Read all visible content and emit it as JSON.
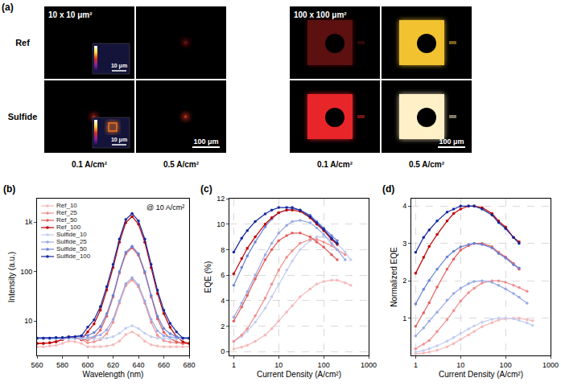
{
  "panel_a": {
    "label": "(a)",
    "rows": [
      "Ref",
      "Sulfide"
    ],
    "columns": [
      "0.1 A/cm²",
      "0.5 A/cm²"
    ],
    "groups": [
      {
        "title": "10 x 10 μm²",
        "type": "spot",
        "scale_bar": "100 μm",
        "inset_scale_bar": "10 μm",
        "cells": [
          [
            {
              "inset": true
            },
            {
              "color": "#7a1010"
            }
          ],
          [
            {
              "color": "#b02020",
              "inset": true,
              "inset_color": "#f07820"
            },
            {
              "color": "#d03020"
            }
          ]
        ]
      },
      {
        "title": "100 x 100 μm²",
        "type": "pad",
        "scale_bar": "100 μm",
        "cells": [
          [
            {
              "color": "#5c1010"
            },
            {
              "color": "#f2c230"
            }
          ],
          [
            {
              "color": "#e8262a"
            },
            {
              "color": "#fff0c8"
            }
          ]
        ]
      }
    ]
  },
  "chart_data": [
    {
      "label": "(b)",
      "type": "line",
      "annotation": "@ 10 A/cm²",
      "x_label": "Wavelength (nm)",
      "y_label": "Intensity (a.u.)",
      "log": "y",
      "xlim": [
        560,
        680
      ],
      "xticks": [
        560,
        580,
        600,
        620,
        640,
        660,
        680
      ],
      "ylim": [
        2,
        3000
      ],
      "yticks": [
        10,
        100,
        {
          "value": 1000,
          "label": "1k"
        }
      ],
      "grid": false,
      "legend": "upper left",
      "marker": "circle",
      "x": [
        560,
        565,
        570,
        575,
        580,
        585,
        590,
        595,
        600,
        605,
        610,
        615,
        620,
        625,
        630,
        635,
        640,
        645,
        650,
        655,
        660,
        665,
        670,
        675,
        680
      ],
      "series": [
        {
          "name": "Ref_10",
          "color": "#f6b8b8",
          "values": [
            3.0,
            3.0,
            3.1,
            3.2,
            3.5,
            3.9,
            3.8,
            3.5,
            3.0,
            3.0,
            3.0,
            3.1,
            3.3,
            3.9,
            5.3,
            6.0,
            5.1,
            3.9,
            3.3,
            3.1,
            3.0,
            3.0,
            3.0,
            3.0,
            3.0
          ]
        },
        {
          "name": "Ref_25",
          "color": "#ef8f8f",
          "values": [
            3.5,
            3.5,
            3.6,
            3.8,
            4.2,
            4.8,
            4.6,
            4.2,
            3.6,
            3.8,
            4.2,
            5.5,
            9.4,
            23,
            52,
            68,
            49,
            23,
            9.4,
            5.1,
            4.0,
            3.7,
            3.6,
            3.5,
            3.5
          ]
        },
        {
          "name": "Ref_50",
          "color": "#e35d5d",
          "values": [
            3.5,
            3.5,
            3.6,
            3.8,
            4.2,
            4.8,
            4.6,
            4.2,
            4.1,
            4.7,
            6.5,
            12.5,
            30.5,
            93.5,
            228,
            303,
            213,
            93.5,
            30.5,
            11,
            5.9,
            4.4,
            3.8,
            3.5,
            3.5
          ]
        },
        {
          "name": "Ref_100",
          "color": "#c00000",
          "values": [
            3.5,
            3.5,
            3.6,
            3.8,
            4.2,
            4.8,
            4.6,
            4.2,
            6.0,
            8.7,
            16.5,
            42,
            120,
            393,
            978,
            1304,
            914,
            394,
            120,
            36,
            14,
            7.4,
            4.8,
            3.8,
            3.5
          ]
        },
        {
          "name": "Sulfide_10",
          "color": "#c3cdf0",
          "values": [
            4.3,
            4.3,
            4.3,
            4.3,
            4.3,
            4.3,
            4.3,
            4.3,
            4.3,
            4.3,
            4.4,
            4.5,
            4.8,
            5.6,
            7.1,
            8.0,
            7.0,
            5.6,
            4.8,
            4.5,
            4.4,
            4.3,
            4.3,
            4.3,
            4.3
          ]
        },
        {
          "name": "Sulfide_25",
          "color": "#98aae6",
          "values": [
            4.5,
            4.5,
            4.5,
            4.5,
            4.5,
            4.6,
            4.6,
            4.6,
            4.6,
            4.8,
            5.2,
            6.6,
            10.8,
            25.5,
            57,
            75,
            53.5,
            25.5,
            10.8,
            6.3,
            5.0,
            4.7,
            4.6,
            4.5,
            4.5
          ]
        },
        {
          "name": "Sulfide_50",
          "color": "#6a82d8",
          "values": [
            4.5,
            4.5,
            4.5,
            4.6,
            4.6,
            4.7,
            4.8,
            4.9,
            5.1,
            5.8,
            7.7,
            14,
            33,
            100,
            245,
            325,
            229,
            100,
            33,
            12.5,
            7,
            5.5,
            4.8,
            4.5,
            4.5
          ]
        },
        {
          "name": "Sulfide_100",
          "color": "#1428a0",
          "values": [
            4.5,
            4.5,
            4.5,
            4.6,
            4.6,
            4.7,
            4.8,
            5.0,
            7.5,
            10.5,
            19.5,
            49.5,
            140,
            455,
            1130,
            1500,
            1055,
            455,
            140,
            42,
            16.5,
            9,
            6,
            4.5,
            4.5
          ]
        }
      ]
    },
    {
      "label": "(c)",
      "type": "line",
      "x_label": "Current Density (A/cm²)",
      "y_label": "EQE (%)",
      "log": "x",
      "xlim": [
        0.8,
        1000
      ],
      "xticks": [
        1,
        10,
        100,
        1000
      ],
      "ylim": [
        -0.3,
        12
      ],
      "yticks": [
        0,
        2,
        4,
        6,
        8,
        10,
        12
      ],
      "grid": true,
      "marker": "circle",
      "x": [
        1,
        1.5,
        2,
        3,
        5,
        7,
        10,
        15,
        20,
        30,
        50,
        70,
        100,
        150,
        200,
        300,
        400
      ],
      "series": [
        {
          "color": "#f6b8b8",
          "values": [
            0.2,
            0.35,
            0.5,
            0.8,
            1.3,
            1.8,
            2.4,
            3.1,
            3.6,
            4.3,
            4.9,
            5.3,
            5.5,
            5.6,
            5.6,
            5.4,
            5.2
          ]
        },
        {
          "color": "#c3cdf0",
          "values": [
            0.8,
            1.2,
            1.6,
            2.3,
            3.4,
            4.3,
            5.3,
            6.4,
            7.1,
            8.0,
            8.7,
            9.0,
            9.0,
            8.8,
            8.5,
            7.8,
            7.2
          ]
        },
        {
          "color": "#ef8f8f",
          "values": [
            0.8,
            1.3,
            1.8,
            2.8,
            4.2,
            5.3,
            6.4,
            7.4,
            7.9,
            8.5,
            8.8,
            8.8,
            8.6,
            8.3,
            8.0,
            7.6,
            null
          ]
        },
        {
          "color": "#98aae6",
          "values": [
            2.7,
            3.8,
            4.7,
            6.0,
            7.6,
            8.5,
            9.3,
            9.9,
            10.2,
            10.3,
            10.1,
            9.7,
            9.2,
            8.5,
            8.0,
            7.2,
            null
          ]
        },
        {
          "color": "#e35d5d",
          "values": [
            2.4,
            3.5,
            4.4,
            5.7,
            7.2,
            8.0,
            8.7,
            9.1,
            9.3,
            9.3,
            9.0,
            8.6,
            8.2,
            7.6,
            7.2,
            null,
            null
          ]
        },
        {
          "color": "#6a82d8",
          "values": [
            5.2,
            6.6,
            7.5,
            8.6,
            9.8,
            10.4,
            10.9,
            11.1,
            11.2,
            11.1,
            10.7,
            10.2,
            9.7,
            9.1,
            8.7,
            null,
            null
          ]
        },
        {
          "color": "#c00000",
          "values": [
            6.1,
            7.3,
            8.1,
            9.0,
            10.0,
            10.5,
            10.9,
            11.1,
            11.1,
            11.0,
            10.5,
            10.0,
            9.5,
            8.8,
            8.4,
            null,
            null
          ]
        },
        {
          "color": "#1428a0",
          "values": [
            7.8,
            8.9,
            9.5,
            10.2,
            10.8,
            11.1,
            11.3,
            11.3,
            11.3,
            11.1,
            10.6,
            10.1,
            9.6,
            8.9,
            8.5,
            null,
            null
          ]
        }
      ]
    },
    {
      "label": "(d)",
      "type": "line",
      "x_label": "Current Density (A/cm²)",
      "y_label": "Normalized EQE",
      "log": "x",
      "xlim": [
        0.8,
        1000
      ],
      "xticks": [
        1,
        10,
        100,
        1000
      ],
      "ylim": [
        0,
        4.2
      ],
      "yticks": [
        1,
        2,
        3,
        4
      ],
      "grid": true,
      "marker": "circle",
      "x": [
        1,
        1.5,
        2,
        3,
        5,
        7,
        10,
        15,
        20,
        30,
        50,
        70,
        100,
        150,
        200,
        300,
        400
      ],
      "series": [
        {
          "color": "#f6b8b8",
          "values": [
            0.04,
            0.06,
            0.09,
            0.14,
            0.23,
            0.32,
            0.43,
            0.55,
            0.64,
            0.77,
            0.88,
            0.95,
            0.98,
            1.0,
            1.0,
            0.96,
            0.93
          ]
        },
        {
          "color": "#c3cdf0",
          "values": [
            0.09,
            0.13,
            0.18,
            0.26,
            0.38,
            0.48,
            0.59,
            0.71,
            0.79,
            0.89,
            0.97,
            1.0,
            1.0,
            0.98,
            0.94,
            0.87,
            0.8
          ]
        },
        {
          "color": "#ef8f8f",
          "values": [
            0.18,
            0.3,
            0.4,
            0.64,
            0.96,
            1.2,
            1.46,
            1.68,
            1.8,
            1.94,
            2.0,
            2.0,
            1.96,
            1.88,
            1.82,
            1.72,
            null
          ]
        },
        {
          "color": "#98aae6",
          "values": [
            0.52,
            0.74,
            0.92,
            1.16,
            1.48,
            1.66,
            1.8,
            1.92,
            1.98,
            2.0,
            1.96,
            1.88,
            1.78,
            1.66,
            1.56,
            1.4,
            null
          ]
        },
        {
          "color": "#e35d5d",
          "values": [
            0.78,
            1.14,
            1.41,
            1.83,
            2.31,
            2.58,
            2.82,
            2.94,
            3.0,
            3.0,
            2.91,
            2.76,
            2.64,
            2.46,
            2.31,
            null,
            null
          ]
        },
        {
          "color": "#6a82d8",
          "values": [
            1.38,
            1.77,
            2.01,
            2.31,
            2.64,
            2.79,
            2.91,
            2.97,
            3.0,
            2.97,
            2.88,
            2.73,
            2.61,
            2.43,
            2.34,
            null,
            null
          ]
        },
        {
          "color": "#c00000",
          "values": [
            2.2,
            2.63,
            2.92,
            3.24,
            3.6,
            3.8,
            3.92,
            4.0,
            4.0,
            3.96,
            3.8,
            3.6,
            3.44,
            3.16,
            3.04,
            null,
            null
          ]
        },
        {
          "color": "#1428a0",
          "values": [
            2.76,
            3.16,
            3.36,
            3.6,
            3.84,
            3.92,
            4.0,
            4.0,
            4.0,
            3.92,
            3.76,
            3.56,
            3.4,
            3.16,
            3.0,
            null,
            null
          ]
        }
      ]
    }
  ]
}
